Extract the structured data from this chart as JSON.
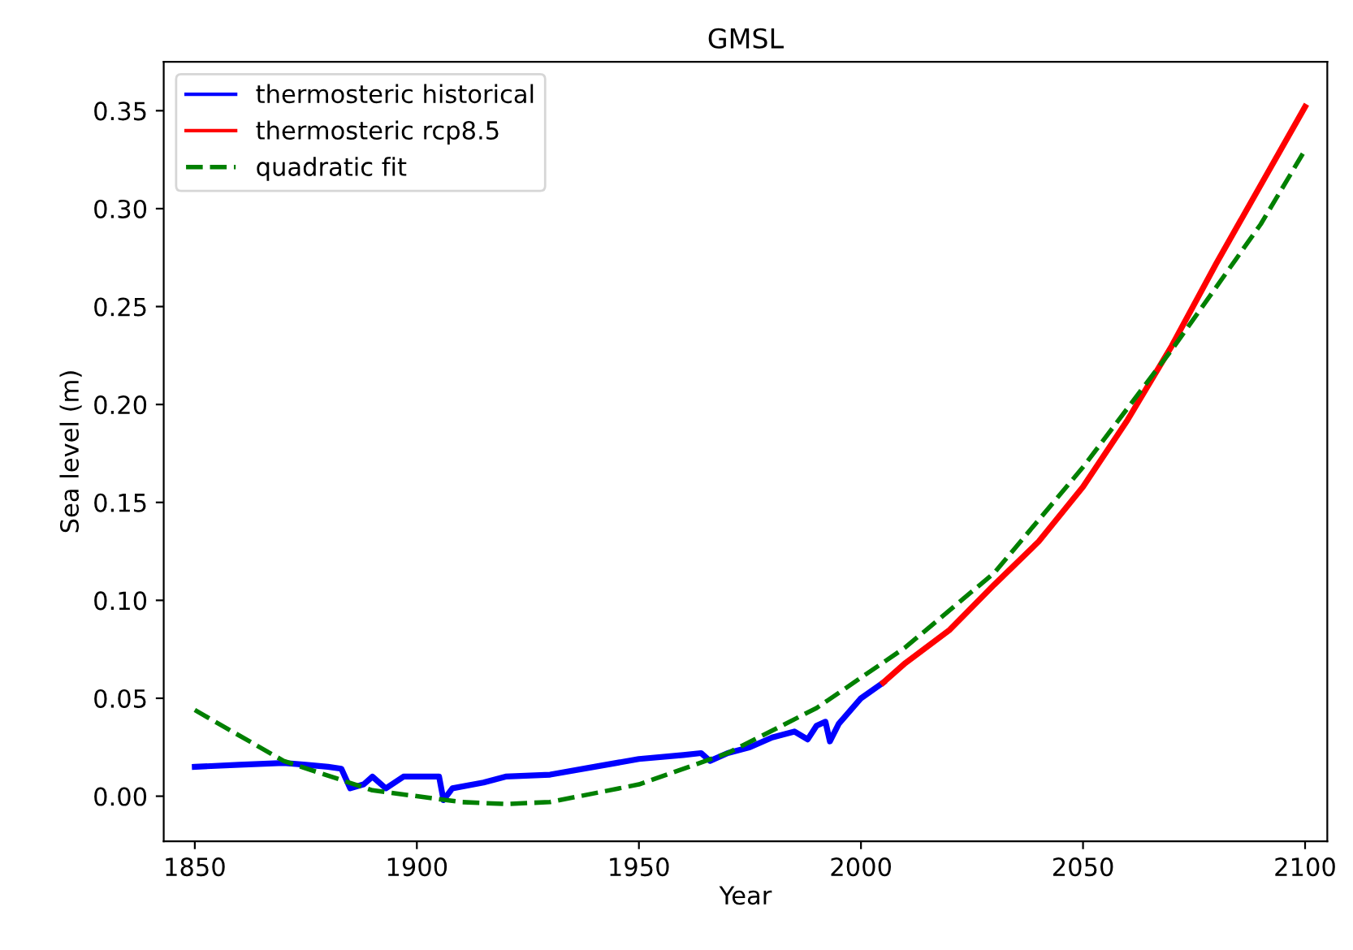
{
  "chart_data": {
    "type": "line",
    "title": "GMSL",
    "xlabel": "Year",
    "ylabel": "Sea level (m)",
    "xlim": [
      1843,
      2105
    ],
    "xticks": [
      1850,
      1900,
      1950,
      2000,
      2050,
      2100
    ],
    "ylim": [
      -0.023,
      0.375
    ],
    "yticks": [
      {
        "value": 0,
        "label": "0.00"
      },
      {
        "value": 0.05,
        "label": "0.05"
      },
      {
        "value": 0.1,
        "label": "0.10"
      },
      {
        "value": 0.15,
        "label": "0.15"
      },
      {
        "value": 0.2,
        "label": "0.20"
      },
      {
        "value": 0.25,
        "label": "0.25"
      },
      {
        "value": 0.3,
        "label": "0.30"
      },
      {
        "value": 0.35,
        "label": "0.35"
      }
    ],
    "grid": false,
    "legend": "top left",
    "series": [
      {
        "name": "thermosteric historical",
        "color": "#0000ff",
        "line_style": "solid",
        "x": [
          1850,
          1860,
          1870,
          1875,
          1880,
          1883,
          1885,
          1888,
          1890,
          1893,
          1897,
          1900,
          1905,
          1906,
          1908,
          1915,
          1920,
          1930,
          1940,
          1950,
          1960,
          1964,
          1966,
          1970,
          1975,
          1980,
          1985,
          1988,
          1990,
          1992,
          1993,
          1995,
          2000,
          2005
        ],
        "values": [
          0.015,
          0.016,
          0.017,
          0.016,
          0.015,
          0.014,
          0.004,
          0.006,
          0.01,
          0.004,
          0.01,
          0.01,
          0.01,
          -0.002,
          0.004,
          0.007,
          0.01,
          0.011,
          0.015,
          0.019,
          0.021,
          0.022,
          0.018,
          0.022,
          0.025,
          0.03,
          0.033,
          0.029,
          0.036,
          0.038,
          0.028,
          0.037,
          0.05,
          0.058
        ]
      },
      {
        "name": "thermosteric rcp8.5",
        "color": "#ff0000",
        "line_style": "solid",
        "x": [
          2005,
          2010,
          2020,
          2030,
          2040,
          2050,
          2060,
          2070,
          2080,
          2090,
          2100
        ],
        "values": [
          0.058,
          0.068,
          0.085,
          0.108,
          0.13,
          0.158,
          0.192,
          0.23,
          0.272,
          0.312,
          0.352
        ]
      },
      {
        "name": "quadratic fit",
        "color": "#008000",
        "line_style": "dashed",
        "x": [
          1850,
          1870,
          1890,
          1910,
          1920,
          1930,
          1950,
          1970,
          1990,
          2010,
          2030,
          2050,
          2070,
          2090,
          2100
        ],
        "values": [
          0.044,
          0.018,
          0.003,
          -0.003,
          -0.004,
          -0.003,
          0.006,
          0.022,
          0.045,
          0.076,
          0.114,
          0.168,
          0.228,
          0.292,
          0.33
        ]
      }
    ]
  }
}
